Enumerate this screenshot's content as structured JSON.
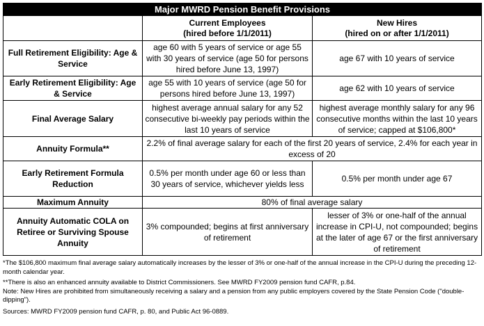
{
  "table": {
    "title": "Major MWRD Pension Benefit Provisions",
    "columns": {
      "current_line1": "Current Employees",
      "current_line2": "(hired before 1/1/2011)",
      "new_line1": "New Hires",
      "new_line2": "(hired on or after 1/1/2011)"
    },
    "rows": [
      {
        "label": "Full Retirement Eligibility: Age & Service",
        "current": "age 60 with 5 years of service or age 55 with 30 years of service (age 50 for persons hired before June 13, 1997)",
        "new": "age 67 with 10 years of service"
      },
      {
        "label": "Early Retirement Eligibility: Age & Service",
        "current": "age 55 with 10 years of service (age 50 for persons hired before June 13, 1997)",
        "new": "age 62 with 10 years of service"
      },
      {
        "label": "Final Average Salary",
        "current": "highest average annual salary for any 52 consecutive bi-weekly pay periods within the last 10 years of service",
        "new": "highest average monthly salary for any 96 consecutive months within the last 10 years of service; capped at $106,800*"
      },
      {
        "label": "Annuity Formula**",
        "merged": "2.2% of final average salary for each of the first 20 years of service, 2.4% for each year in excess of 20"
      },
      {
        "label": "Early Retirement Formula Reduction",
        "current": "0.5% per month under age 60 or less than 30 years of service, whichever yields less",
        "new": "0.5% per month under age 67"
      },
      {
        "label": "Maximum Annuity",
        "merged": "80% of final average salary"
      },
      {
        "label": "Annuity Automatic COLA on Retiree or Surviving Spouse Annuity",
        "current": "3% compounded; begins at first anniversary of retirement",
        "new": "lesser of 3% or one-half of the annual increase in CPI-U, not compounded; begins at the later of age 67 or the first anniversary of retirement"
      }
    ]
  },
  "notes": {
    "n1": "*The $106,800 maximum final average salary automatically increases by the lesser of 3% or one-half of the annual increase in the CPI-U during the preceding 12-month calendar year.",
    "n2": "**There is also an enhanced annuity available to District Commissioners. See MWRD FY2009 pension fund CAFR, p.84.",
    "n3": "Note: New Hires are prohibited from simultaneously receiving a salary and a pension from any public employers covered by the State Pension Code (\"double-dipping\").",
    "n4": "Sources: MWRD FY2009 pension fund CAFR, p. 80, and Public Act 96-0889."
  }
}
